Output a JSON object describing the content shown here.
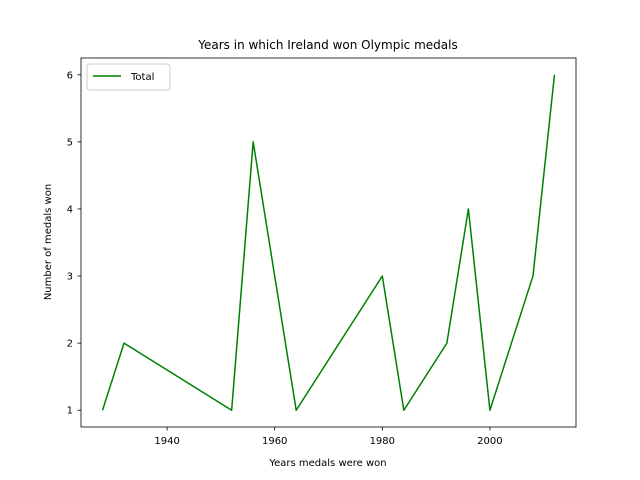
{
  "chart_data": {
    "type": "line",
    "title": "Years in which Ireland won Olympic medals",
    "xlabel": "Years medals were won",
    "ylabel": "Number of medals won",
    "xlim": [
      1924,
      2016
    ],
    "ylim": [
      0.75,
      6.25
    ],
    "xticks": [
      1940,
      1960,
      1980,
      2000
    ],
    "yticks": [
      1,
      2,
      3,
      4,
      5,
      6
    ],
    "grid": false,
    "legend_position": "top-left",
    "series": [
      {
        "name": "Total",
        "color": "#008000",
        "x": [
          1928,
          1932,
          1952,
          1956,
          1964,
          1980,
          1984,
          1992,
          1996,
          2000,
          2008,
          2012
        ],
        "y": [
          1,
          2,
          1,
          5,
          1,
          3,
          1,
          2,
          4,
          1,
          3,
          6
        ]
      }
    ]
  }
}
